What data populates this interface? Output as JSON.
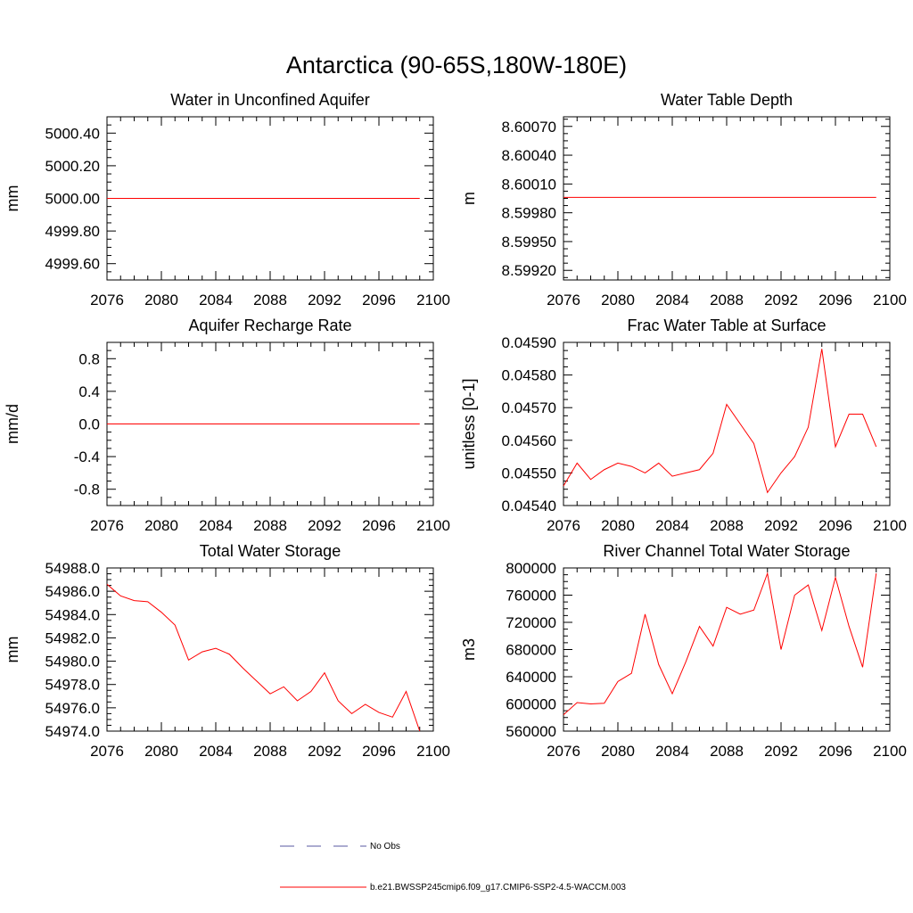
{
  "figure_title": "Antarctica (90-65S,180W-180E)",
  "colors": {
    "model_line": "#ff0000",
    "obs_line": "#5a5aa0",
    "axis": "#000000"
  },
  "chart_data": [
    {
      "id": "p1",
      "type": "line",
      "title": "Water in Unconfined Aquifer",
      "ylabel": "mm",
      "xlabel": "",
      "xlim": [
        2076,
        2100
      ],
      "ylim": [
        4999.5,
        5000.5
      ],
      "xticks": [
        2076,
        2080,
        2084,
        2088,
        2092,
        2096,
        2100
      ],
      "yticks": [
        4999.6,
        4999.8,
        5000.0,
        5000.2,
        5000.4
      ],
      "ydecimals": 2,
      "series": [
        {
          "name": "b.e21.BWSSP245cmip6.f09_g17.CMIP6-SSP2-4.5-WACCM.003",
          "x": [
            2076,
            2077,
            2078,
            2079,
            2080,
            2081,
            2082,
            2083,
            2084,
            2085,
            2086,
            2087,
            2088,
            2089,
            2090,
            2091,
            2092,
            2093,
            2094,
            2095,
            2096,
            2097,
            2098,
            2099
          ],
          "y": [
            5000,
            5000,
            5000,
            5000,
            5000,
            5000,
            5000,
            5000,
            5000,
            5000,
            5000,
            5000,
            5000,
            5000,
            5000,
            5000,
            5000,
            5000,
            5000,
            5000,
            5000,
            5000,
            5000,
            5000
          ]
        }
      ]
    },
    {
      "id": "p2",
      "type": "line",
      "title": "Water Table Depth",
      "ylabel": "m",
      "xlabel": "",
      "xlim": [
        2076,
        2100
      ],
      "ylim": [
        8.5991,
        8.6008
      ],
      "xticks": [
        2076,
        2080,
        2084,
        2088,
        2092,
        2096,
        2100
      ],
      "yticks": [
        8.5992,
        8.5995,
        8.5998,
        8.6001,
        8.6004,
        8.6007
      ],
      "ydecimals": 5,
      "series": [
        {
          "name": "b.e21.BWSSP245cmip6.f09_g17.CMIP6-SSP2-4.5-WACCM.003",
          "x": [
            2076,
            2077,
            2078,
            2079,
            2080,
            2081,
            2082,
            2083,
            2084,
            2085,
            2086,
            2087,
            2088,
            2089,
            2090,
            2091,
            2092,
            2093,
            2094,
            2095,
            2096,
            2097,
            2098,
            2099
          ],
          "y": [
            8.59996,
            8.59996,
            8.59996,
            8.59996,
            8.59996,
            8.59996,
            8.59996,
            8.59996,
            8.59996,
            8.59996,
            8.59996,
            8.59996,
            8.59996,
            8.59996,
            8.59996,
            8.59996,
            8.59996,
            8.59996,
            8.59996,
            8.59996,
            8.59996,
            8.59996,
            8.59996,
            8.59996
          ]
        }
      ]
    },
    {
      "id": "p3",
      "type": "line",
      "title": "Aquifer Recharge Rate",
      "ylabel": "mm/d",
      "xlabel": "",
      "xlim": [
        2076,
        2100
      ],
      "ylim": [
        -1.0,
        1.0
      ],
      "xticks": [
        2076,
        2080,
        2084,
        2088,
        2092,
        2096,
        2100
      ],
      "yticks": [
        -0.8,
        -0.4,
        0.0,
        0.4,
        0.8
      ],
      "ydecimals": 1,
      "series": [
        {
          "name": "b.e21.BWSSP245cmip6.f09_g17.CMIP6-SSP2-4.5-WACCM.003",
          "x": [
            2076,
            2077,
            2078,
            2079,
            2080,
            2081,
            2082,
            2083,
            2084,
            2085,
            2086,
            2087,
            2088,
            2089,
            2090,
            2091,
            2092,
            2093,
            2094,
            2095,
            2096,
            2097,
            2098,
            2099
          ],
          "y": [
            0,
            0,
            0,
            0,
            0,
            0,
            0,
            0,
            0,
            0,
            0,
            0,
            0,
            0,
            0,
            0,
            0,
            0,
            0,
            0,
            0,
            0,
            0,
            0
          ]
        }
      ]
    },
    {
      "id": "p4",
      "type": "line",
      "title": "Frac Water Table at Surface",
      "ylabel": "unitless [0-1]",
      "xlabel": "",
      "xlim": [
        2076,
        2100
      ],
      "ylim": [
        0.0454,
        0.0459
      ],
      "xticks": [
        2076,
        2080,
        2084,
        2088,
        2092,
        2096,
        2100
      ],
      "yticks": [
        0.0454,
        0.0455,
        0.0456,
        0.0457,
        0.0458,
        0.0459
      ],
      "ydecimals": 5,
      "series": [
        {
          "name": "b.e21.BWSSP245cmip6.f09_g17.CMIP6-SSP2-4.5-WACCM.003",
          "x": [
            2076,
            2077,
            2078,
            2079,
            2080,
            2081,
            2082,
            2083,
            2084,
            2085,
            2086,
            2087,
            2088,
            2089,
            2090,
            2091,
            2092,
            2093,
            2094,
            2095,
            2096,
            2097,
            2098,
            2099
          ],
          "y": [
            0.04546,
            0.04553,
            0.04548,
            0.04551,
            0.04553,
            0.04552,
            0.0455,
            0.04553,
            0.04549,
            0.0455,
            0.04551,
            0.04556,
            0.04571,
            0.04565,
            0.04559,
            0.04544,
            0.0455,
            0.04555,
            0.04564,
            0.04588,
            0.04558,
            0.04568,
            0.04568,
            0.04558
          ]
        }
      ]
    },
    {
      "id": "p5",
      "type": "line",
      "title": "Total Water Storage",
      "ylabel": "mm",
      "xlabel": "",
      "xlim": [
        2076,
        2100
      ],
      "ylim": [
        54974,
        54988
      ],
      "xticks": [
        2076,
        2080,
        2084,
        2088,
        2092,
        2096,
        2100
      ],
      "yticks": [
        54974,
        54976,
        54978,
        54980,
        54982,
        54984,
        54986,
        54988
      ],
      "ydecimals": 1,
      "series": [
        {
          "name": "b.e21.BWSSP245cmip6.f09_g17.CMIP6-SSP2-4.5-WACCM.003",
          "x": [
            2076,
            2077,
            2078,
            2079,
            2080,
            2081,
            2082,
            2083,
            2084,
            2085,
            2086,
            2087,
            2088,
            2089,
            2090,
            2091,
            2092,
            2093,
            2094,
            2095,
            2096,
            2097,
            2098,
            2099
          ],
          "y": [
            54986.6,
            54985.6,
            54985.2,
            54985.1,
            54984.2,
            54983.1,
            54980.1,
            54980.8,
            54981.1,
            54980.6,
            54979.4,
            54978.3,
            54977.2,
            54977.8,
            54976.6,
            54977.4,
            54979,
            54976.6,
            54975.5,
            54976.3,
            54975.6,
            54975.2,
            54977.4,
            54974
          ]
        }
      ]
    },
    {
      "id": "p6",
      "type": "line",
      "title": "River Channel Total Water Storage",
      "ylabel": "m3",
      "xlabel": "",
      "xlim": [
        2076,
        2100
      ],
      "ylim": [
        560000,
        800000
      ],
      "xticks": [
        2076,
        2080,
        2084,
        2088,
        2092,
        2096,
        2100
      ],
      "yticks": [
        560000,
        600000,
        640000,
        680000,
        720000,
        760000,
        800000
      ],
      "ydecimals": 0,
      "series": [
        {
          "name": "b.e21.BWSSP245cmip6.f09_g17.CMIP6-SSP2-4.5-WACCM.003",
          "x": [
            2076,
            2077,
            2078,
            2079,
            2080,
            2081,
            2082,
            2083,
            2084,
            2085,
            2086,
            2087,
            2088,
            2089,
            2090,
            2091,
            2092,
            2093,
            2094,
            2095,
            2096,
            2097,
            2098,
            2099
          ],
          "y": [
            584000,
            602000,
            600000,
            601000,
            633000,
            645000,
            732000,
            658000,
            615000,
            662000,
            714000,
            685000,
            742000,
            732000,
            738000,
            792000,
            680000,
            760000,
            775000,
            708000,
            786000,
            714000,
            654000,
            792000
          ]
        }
      ]
    }
  ],
  "legend": {
    "entries": [
      {
        "label": "No Obs",
        "style": "dashed",
        "color": "#5a5aa0"
      },
      {
        "label": "b.e21.BWSSP245cmip6.f09_g17.CMIP6-SSP2-4.5-WACCM.003",
        "style": "solid",
        "color": "#ff0000"
      }
    ]
  }
}
